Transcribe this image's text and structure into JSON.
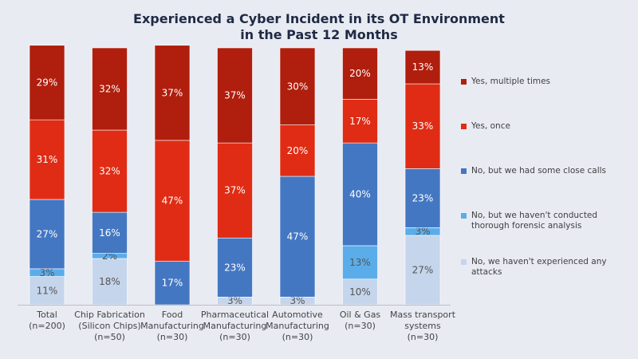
{
  "chart_data": {
    "type": "bar",
    "stacked": true,
    "title_lines": [
      "Experienced a Cyber Incident in its OT Environment",
      "in the Past 12 Months"
    ],
    "categories": [
      [
        "Total",
        "(n=200)"
      ],
      [
        "Chip Fabrication",
        "(Silicon Chips)",
        "(n=50)"
      ],
      [
        "Food",
        "Manufacturing",
        "(n=30)"
      ],
      [
        "Pharmaceutical",
        "Manufacturing",
        "(n=30)"
      ],
      [
        "Automotive",
        "Manufacturing",
        "(n=30)"
      ],
      [
        "Oil & Gas",
        "(n=30)"
      ],
      [
        "Mass transport",
        "systems",
        "(n=30)"
      ]
    ],
    "series": [
      {
        "name": "No, we haven't experienced any attacks",
        "color": "#c5d5eb",
        "values": [
          11,
          18,
          0,
          3,
          3,
          10,
          27
        ],
        "labels": [
          "11%",
          "18%",
          "",
          "3%",
          "3%",
          "10%",
          "27%"
        ]
      },
      {
        "name": "No, but we haven't conducted thorough forensic analysis",
        "color": "#5badea",
        "values": [
          3,
          2,
          0,
          0,
          0,
          13,
          3
        ],
        "labels": [
          "3%",
          "2%",
          "",
          "",
          "",
          "13%",
          "3%"
        ]
      },
      {
        "name": "No, but we had some close calls",
        "color": "#4477c2",
        "values": [
          27,
          16,
          17,
          23,
          47,
          40,
          23
        ],
        "labels": [
          "27%",
          "16%",
          "17%",
          "23%",
          "47%",
          "40%",
          "23%"
        ]
      },
      {
        "name": "Yes, once",
        "color": "#e02c14",
        "values": [
          31,
          32,
          47,
          37,
          20,
          17,
          33
        ],
        "labels": [
          "31%",
          "32%",
          "47%",
          "37%",
          "20%",
          "17%",
          "33%"
        ]
      },
      {
        "name": "Yes, multiple times",
        "color": "#b01e0d",
        "values": [
          29,
          32,
          37,
          37,
          30,
          20,
          13
        ],
        "labels": [
          "29%",
          "32%",
          "37%",
          "37%",
          "30%",
          "20%",
          "13%"
        ]
      }
    ],
    "legend_order": [
      "Yes, multiple times",
      "Yes, once",
      "No, but we had some close calls",
      "No, but we haven't conducted thorough forensic analysis",
      "No, we haven't experienced any attacks"
    ],
    "ylim": [
      0,
      100
    ],
    "xlabel": "",
    "ylabel": "",
    "grid": false,
    "legend_position": "right"
  }
}
